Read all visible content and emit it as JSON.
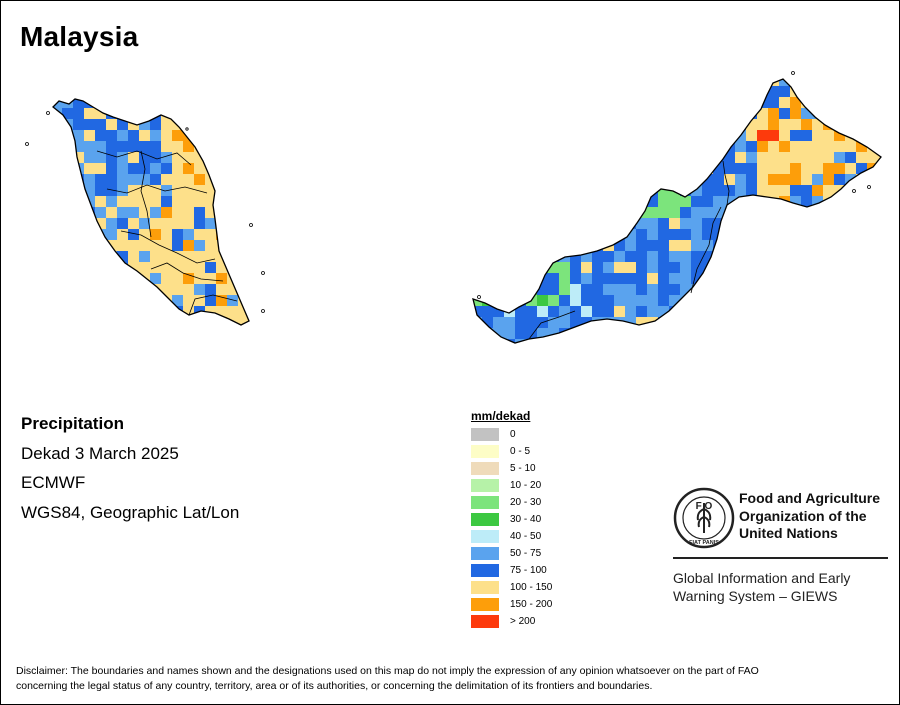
{
  "map": {
    "title": "Malaysia"
  },
  "info": {
    "variable": "Precipitation",
    "period": "Dekad 3 March 2025",
    "source": "ECMWF",
    "projection": "WGS84, Geographic Lat/Lon"
  },
  "legend": {
    "title": "mm/dekad",
    "items": [
      {
        "label": "0",
        "color": "#c2c2c2"
      },
      {
        "label": "0 - 5",
        "color": "#fdfdc6"
      },
      {
        "label": "5 - 10",
        "color": "#efdbba"
      },
      {
        "label": "10 - 20",
        "color": "#b6f2a8"
      },
      {
        "label": "20 - 30",
        "color": "#7ce47c"
      },
      {
        "label": "30 - 40",
        "color": "#3cc841"
      },
      {
        "label": "40 - 50",
        "color": "#bdecf8"
      },
      {
        "label": "50 - 75",
        "color": "#5aa3ee"
      },
      {
        "label": "75 - 100",
        "color": "#2168e2"
      },
      {
        "label": "100 - 150",
        "color": "#fde08a"
      },
      {
        "label": "150 - 200",
        "color": "#fd9e0a"
      },
      {
        "label": "> 200",
        "color": "#fd3a0c"
      }
    ]
  },
  "logo": {
    "org_line1": "Food and Agriculture",
    "org_line2": "Organization of the",
    "org_line3": "United Nations",
    "system_line1": "Global Information and Early",
    "system_line2": "Warning System – GIEWS",
    "emblem_text": "FAO",
    "motto": "FIAT PANIS"
  },
  "disclaimer": {
    "line1": "Disclaimer: The boundaries and names shown and the designations used on this map do not imply the expression of any opinion whatsoever on the part of FAO",
    "line2": "concerning the legal status of any country, territory, area or of its authorities, or concerning the delimitation of its frontiers and boundaries."
  }
}
